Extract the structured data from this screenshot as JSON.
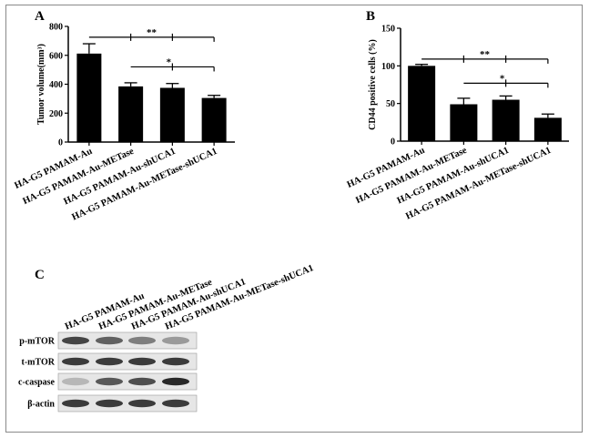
{
  "panels": {
    "a_letter": "A",
    "b_letter": "B",
    "c_letter": "C"
  },
  "colors": {
    "bar": "#000000",
    "axis": "#000000",
    "background": "#ffffff",
    "frame": "#8a8a8a"
  },
  "chart_data": [
    {
      "panel": "A",
      "type": "bar",
      "categories": [
        "HA-G5 PAMAM-Au",
        "HA-G5 PAMAM-Au-METase",
        "HA-G5 PAMAM-Au-shUCA1",
        "HA-G5 PAMAM-Au-METase-shUCA1"
      ],
      "values": [
        612,
        385,
        375,
        305
      ],
      "errors": [
        68,
        25,
        30,
        18
      ],
      "ylabel": "Tumor volume(mm³)",
      "ylim": [
        0,
        800
      ],
      "yticks": [
        0,
        200,
        400,
        600,
        800
      ],
      "grid": false,
      "significance": [
        {
          "label": "**",
          "from": 0,
          "to": 3,
          "level": 725
        },
        {
          "label": "*",
          "from": 1,
          "to": 3,
          "level": 520
        }
      ]
    },
    {
      "panel": "B",
      "type": "bar",
      "categories": [
        "HA-G5 PAMAM-Au",
        "HA-G5 PAMAM-Au-METase",
        "HA-G5 PAMAM-Au-shUCA1",
        "HA-G5 PAMAM-Au-METase-shUCA1"
      ],
      "values": [
        100,
        49,
        55,
        31
      ],
      "errors": [
        2,
        8,
        5,
        5
      ],
      "ylabel": "CD44 positive cells (%)",
      "ylim": [
        0,
        150
      ],
      "yticks": [
        0,
        50,
        100,
        150
      ],
      "grid": false,
      "significance": [
        {
          "label": "**",
          "from": 0,
          "to": 3,
          "level": 109
        },
        {
          "label": "*",
          "from": 1,
          "to": 3,
          "level": 77
        }
      ]
    }
  ],
  "western_blot": {
    "columns": [
      "HA-G5 PAMAM-Au",
      "HA-G5 PAMAM-Au-METase",
      "HA-G5 PAMAM-Au-shUCA1",
      "HA-G5 PAMAM-Au-METase-shUCA1"
    ],
    "rows": [
      {
        "label": "p-mTOR",
        "intensities": [
          0.85,
          0.7,
          0.55,
          0.4
        ]
      },
      {
        "label": "t-mTOR",
        "intensities": [
          0.9,
          0.9,
          0.9,
          0.9
        ]
      },
      {
        "label": "c-caspase",
        "intensities": [
          0.25,
          0.75,
          0.8,
          1.0
        ]
      },
      {
        "label": "β-actin",
        "intensities": [
          0.9,
          0.9,
          0.9,
          0.9
        ]
      }
    ]
  }
}
